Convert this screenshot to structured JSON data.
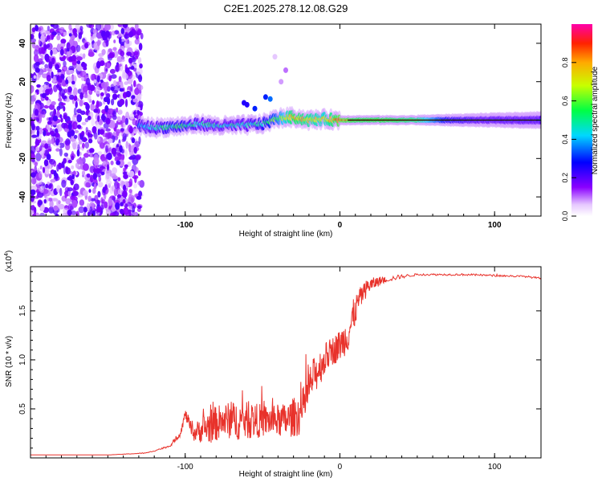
{
  "title": "C2E1.2025.278.12.08.G29",
  "chart_data": [
    {
      "type": "heatmap",
      "xlabel": "Height of straight line (km)",
      "ylabel": "Frequency (Hz)",
      "xlim": [
        -200,
        130
      ],
      "ylim": [
        -50,
        50
      ],
      "x_ticks": [
        -100,
        0,
        100
      ],
      "y_ticks": [
        -40,
        -20,
        0,
        20,
        40
      ],
      "x_tick_labels": [
        "-100",
        "0",
        "100"
      ],
      "y_tick_labels": [
        "-40",
        "-20",
        "0",
        "20",
        "40"
      ],
      "noise_region_x": [
        -200,
        -128
      ],
      "ridge": [
        {
          "x": -130,
          "y": -3,
          "a": 0.35
        },
        {
          "x": -120,
          "y": -4,
          "a": 0.45
        },
        {
          "x": -110,
          "y": -3.5,
          "a": 0.5
        },
        {
          "x": -100,
          "y": -3,
          "a": 0.5
        },
        {
          "x": -90,
          "y": -2,
          "a": 0.45
        },
        {
          "x": -80,
          "y": -3,
          "a": 0.45
        },
        {
          "x": -70,
          "y": -3,
          "a": 0.45
        },
        {
          "x": -60,
          "y": -2.5,
          "a": 0.45
        },
        {
          "x": -50,
          "y": -2,
          "a": 0.5
        },
        {
          "x": -40,
          "y": 1,
          "a": 0.6
        },
        {
          "x": -30,
          "y": 1.5,
          "a": 0.8
        },
        {
          "x": -20,
          "y": 0,
          "a": 0.75
        },
        {
          "x": -10,
          "y": 0.5,
          "a": 0.7
        },
        {
          "x": 0,
          "y": 0,
          "a": 0.85
        },
        {
          "x": 10,
          "y": 0,
          "a": 0.8
        },
        {
          "x": 30,
          "y": 0,
          "a": 0.8
        },
        {
          "x": 50,
          "y": 0,
          "a": 0.75
        },
        {
          "x": 70,
          "y": 0,
          "a": 0.5
        },
        {
          "x": 90,
          "y": 0,
          "a": 0.45
        },
        {
          "x": 110,
          "y": 0,
          "a": 0.45
        },
        {
          "x": 130,
          "y": 0,
          "a": 0.45
        }
      ],
      "colorbar": {
        "label": "Normalized spectral amplitude",
        "range": [
          0,
          1
        ],
        "ticks": [
          0.0,
          0.2,
          0.4,
          0.6,
          0.8
        ],
        "tick_labels": [
          "0.0",
          "0.2",
          "0.4",
          "0.6",
          "0.8"
        ]
      }
    },
    {
      "type": "line",
      "xlabel": "Height of straight line (km)",
      "ylabel": "SNR (10 * v/v)",
      "y_multiplier_base": "(x10",
      "y_multiplier_exp": "4",
      "y_multiplier_close": ")",
      "xlim": [
        -200,
        130
      ],
      "ylim": [
        0,
        1.95
      ],
      "x_ticks": [
        -100,
        0,
        100
      ],
      "y_ticks": [
        0.5,
        1.0,
        1.5
      ],
      "x_tick_labels": [
        "-100",
        "0",
        "100"
      ],
      "y_tick_labels": [
        "0.5",
        "1.0",
        "1.5"
      ],
      "color": "#e8322b",
      "series": [
        {
          "name": "SNR",
          "x": [
            -200,
            -150,
            -125,
            -110,
            -103,
            -100,
            -95,
            -85,
            -75,
            -65,
            -55,
            -45,
            -35,
            -25,
            -18,
            -12,
            -8,
            -4,
            0,
            5,
            8,
            10,
            12,
            18,
            25,
            30,
            40,
            50,
            60,
            80,
            100,
            120,
            130
          ],
          "values": [
            0.03,
            0.03,
            0.05,
            0.12,
            0.25,
            0.45,
            0.25,
            0.32,
            0.38,
            0.38,
            0.38,
            0.38,
            0.38,
            0.45,
            0.8,
            0.95,
            1.05,
            1.1,
            1.15,
            1.25,
            1.4,
            1.5,
            1.6,
            1.75,
            1.8,
            1.82,
            1.85,
            1.87,
            1.87,
            1.87,
            1.86,
            1.85,
            1.83
          ],
          "noise": [
            0,
            0,
            0.005,
            0.01,
            0.03,
            0.05,
            0.08,
            0.18,
            0.18,
            0.2,
            0.18,
            0.16,
            0.18,
            0.22,
            0.2,
            0.18,
            0.15,
            0.15,
            0.16,
            0.18,
            0.2,
            0.15,
            0.12,
            0.08,
            0.05,
            0.03,
            0.02,
            0.01,
            0.01,
            0.01,
            0.01,
            0.01,
            0.01
          ]
        }
      ]
    }
  ]
}
